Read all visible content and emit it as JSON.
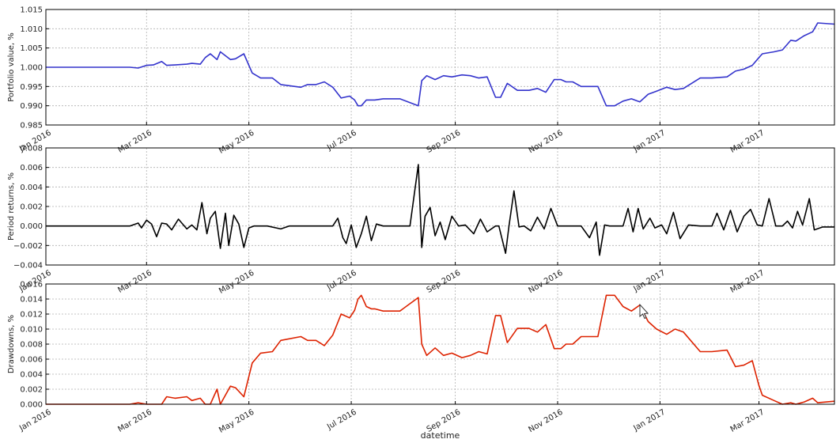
{
  "chart_data": [
    {
      "type": "line",
      "ylabel": "Portfolio value, %",
      "color": "#3333cc",
      "ylim": [
        0.985,
        1.015
      ],
      "yticks": [
        "0.985",
        "0.990",
        "0.995",
        "1.000",
        "1.005",
        "1.010",
        "1.015"
      ],
      "xticks": [
        "Jan 2016",
        "Mar 2016",
        "May 2016",
        "Jul 2016",
        "Sep 2016",
        "Nov 2016",
        "Jan 2017",
        "Mar 2017"
      ],
      "grid": true,
      "series": [
        {
          "x": [
            "2016-01-01",
            "2016-02-20",
            "2016-02-25",
            "2016-03-01",
            "2016-03-05",
            "2016-03-10",
            "2016-03-13",
            "2016-03-18",
            "2016-03-25",
            "2016-03-28",
            "2016-04-02",
            "2016-04-05",
            "2016-04-08",
            "2016-04-12",
            "2016-04-14",
            "2016-04-20",
            "2016-04-23",
            "2016-04-28",
            "2016-05-03",
            "2016-05-08",
            "2016-05-15",
            "2016-05-20",
            "2016-06-01",
            "2016-06-05",
            "2016-06-10",
            "2016-06-15",
            "2016-06-20",
            "2016-06-25",
            "2016-06-30",
            "2016-07-03",
            "2016-07-05",
            "2016-07-07",
            "2016-07-10",
            "2016-07-13",
            "2016-07-15",
            "2016-07-20",
            "2016-07-30",
            "2016-08-10",
            "2016-08-12",
            "2016-08-15",
            "2016-08-20",
            "2016-08-25",
            "2016-08-30",
            "2016-09-05",
            "2016-09-10",
            "2016-09-15",
            "2016-09-20",
            "2016-09-25",
            "2016-09-28",
            "2016-10-02",
            "2016-10-08",
            "2016-10-15",
            "2016-10-20",
            "2016-10-25",
            "2016-10-30",
            "2016-11-03",
            "2016-11-06",
            "2016-11-10",
            "2016-11-15",
            "2016-11-20",
            "2016-11-25",
            "2016-11-30",
            "2016-12-05",
            "2016-12-10",
            "2016-12-15",
            "2016-12-20",
            "2016-12-25",
            "2016-12-30",
            "2017-01-05",
            "2017-01-10",
            "2017-01-15",
            "2017-01-25",
            "2017-02-01",
            "2017-02-10",
            "2017-02-15",
            "2017-02-20",
            "2017-02-25",
            "2017-03-01",
            "2017-03-03",
            "2017-03-10",
            "2017-03-15",
            "2017-03-20",
            "2017-03-23",
            "2017-03-28",
            "2017-04-02",
            "2017-04-05",
            "2017-04-15"
          ],
          "y": [
            1.0,
            1.0,
            0.9998,
            1.0005,
            1.0006,
            1.0015,
            1.0005,
            1.0006,
            1.0008,
            1.001,
            1.0008,
            1.0025,
            1.0035,
            1.002,
            1.004,
            1.002,
            1.0022,
            1.0035,
            0.9985,
            0.9972,
            0.9972,
            0.9955,
            0.9948,
            0.9955,
            0.9955,
            0.9962,
            0.9948,
            0.992,
            0.9925,
            0.9915,
            0.99,
            0.99,
            0.9915,
            0.9915,
            0.9915,
            0.9918,
            0.9918,
            0.99,
            0.9965,
            0.9978,
            0.9968,
            0.9978,
            0.9975,
            0.998,
            0.9978,
            0.9972,
            0.9975,
            0.9922,
            0.9922,
            0.9958,
            0.994,
            0.994,
            0.9945,
            0.9935,
            0.9968,
            0.9968,
            0.9962,
            0.9962,
            0.995,
            0.995,
            0.995,
            0.99,
            0.99,
            0.9912,
            0.9918,
            0.991,
            0.993,
            0.9938,
            0.9948,
            0.9942,
            0.9945,
            0.9972,
            0.9972,
            0.9975,
            0.999,
            0.9995,
            1.0005,
            1.0025,
            1.0035,
            1.004,
            1.0045,
            1.007,
            1.0068,
            1.0082,
            1.0092,
            1.0115,
            1.0112
          ]
        }
      ]
    },
    {
      "type": "line",
      "ylabel": "Period returns, %",
      "color": "#000000",
      "ylim": [
        -0.004,
        0.008
      ],
      "yticks": [
        "−0.004",
        "−0.002",
        "0.000",
        "0.002",
        "0.004",
        "0.006",
        "0.008"
      ],
      "xticks": [
        "Jan 2016",
        "Mar 2016",
        "May 2016",
        "Jul 2016",
        "Sep 2016",
        "Nov 2016",
        "Jan 2017",
        "Mar 2017"
      ],
      "grid": true,
      "series": [
        {
          "x": [
            "2016-01-01",
            "2016-02-20",
            "2016-02-25",
            "2016-02-27",
            "2016-03-01",
            "2016-03-04",
            "2016-03-07",
            "2016-03-10",
            "2016-03-13",
            "2016-03-16",
            "2016-03-20",
            "2016-03-25",
            "2016-03-28",
            "2016-03-31",
            "2016-04-03",
            "2016-04-06",
            "2016-04-08",
            "2016-04-11",
            "2016-04-14",
            "2016-04-17",
            "2016-04-19",
            "2016-04-22",
            "2016-04-25",
            "2016-04-28",
            "2016-05-01",
            "2016-05-04",
            "2016-05-07",
            "2016-05-12",
            "2016-05-20",
            "2016-05-25",
            "2016-06-01",
            "2016-06-10",
            "2016-06-20",
            "2016-06-23",
            "2016-06-26",
            "2016-06-28",
            "2016-07-01",
            "2016-07-04",
            "2016-07-07",
            "2016-07-10",
            "2016-07-13",
            "2016-07-16",
            "2016-07-20",
            "2016-07-25",
            "2016-08-05",
            "2016-08-10",
            "2016-08-12",
            "2016-08-14",
            "2016-08-17",
            "2016-08-20",
            "2016-08-23",
            "2016-08-26",
            "2016-08-30",
            "2016-09-03",
            "2016-09-07",
            "2016-09-12",
            "2016-09-16",
            "2016-09-20",
            "2016-09-25",
            "2016-09-27",
            "2016-10-01",
            "2016-10-03",
            "2016-10-06",
            "2016-10-09",
            "2016-10-12",
            "2016-10-16",
            "2016-10-20",
            "2016-10-24",
            "2016-10-28",
            "2016-11-01",
            "2016-11-05",
            "2016-11-10",
            "2016-11-15",
            "2016-11-20",
            "2016-11-24",
            "2016-11-26",
            "2016-11-29",
            "2016-12-02",
            "2016-12-06",
            "2016-12-10",
            "2016-12-13",
            "2016-12-16",
            "2016-12-19",
            "2016-12-22",
            "2016-12-26",
            "2016-12-29",
            "2017-01-02",
            "2017-01-05",
            "2017-01-09",
            "2017-01-13",
            "2017-01-18",
            "2017-01-25",
            "2017-02-01",
            "2017-02-04",
            "2017-02-08",
            "2017-02-12",
            "2017-02-16",
            "2017-02-20",
            "2017-02-24",
            "2017-02-28",
            "2017-03-03",
            "2017-03-07",
            "2017-03-11",
            "2017-03-15",
            "2017-03-18",
            "2017-03-21",
            "2017-03-24",
            "2017-03-27",
            "2017-03-31",
            "2017-04-03",
            "2017-04-08",
            "2017-04-15"
          ],
          "y": [
            0,
            0,
            0.0003,
            -0.0002,
            0.0006,
            0.0002,
            -0.0011,
            0.0003,
            0.0002,
            -0.0004,
            0.0007,
            -0.0003,
            0.0001,
            -0.0004,
            0.0024,
            -0.0008,
            0.0008,
            0.0015,
            -0.0023,
            0.0013,
            -0.002,
            0.0011,
            0.0002,
            -0.0022,
            -0.0002,
            0,
            0,
            0,
            -0.0003,
            0,
            0,
            0,
            0,
            0.0008,
            -0.0012,
            -0.0018,
            0.0001,
            -0.0022,
            -0.0008,
            0.001,
            -0.0015,
            0.0002,
            0,
            0,
            0,
            0.0063,
            -0.0022,
            0.001,
            0.0019,
            -0.001,
            0.0004,
            -0.0014,
            0.001,
            0,
            0.0001,
            -0.0008,
            0.0007,
            -0.0006,
            0,
            0,
            -0.0028,
            0,
            0.0036,
            -0.0001,
            0,
            -0.0005,
            0.0009,
            -0.0003,
            0.0018,
            0,
            0,
            0,
            0,
            -0.0012,
            0.0004,
            -0.003,
            0.0001,
            0,
            0,
            0,
            0.0018,
            -0.0006,
            0.0018,
            -0.0003,
            0.0008,
            -0.0002,
            0.0001,
            -0.0008,
            0.0014,
            -0.0013,
            0.0001,
            0,
            0,
            0.0013,
            -0.0004,
            0.0016,
            -0.0006,
            0.001,
            0.0017,
            0.0001,
            0,
            0.0028,
            0,
            0,
            0.0005,
            -0.0002,
            0.0015,
            0.0001,
            0.0028,
            -0.0004,
            -0.0001,
            -0.0001
          ]
        }
      ]
    },
    {
      "type": "line",
      "ylabel": "Drawdowns, %",
      "xlabel": "datetime",
      "color": "#dd2200",
      "ylim": [
        0.0,
        0.016
      ],
      "yticks": [
        "0.000",
        "0.002",
        "0.004",
        "0.006",
        "0.008",
        "0.010",
        "0.012",
        "0.014",
        "0.016"
      ],
      "xticks": [
        "Jan 2016",
        "Mar 2016",
        "May 2016",
        "Jul 2016",
        "Sep 2016",
        "Nov 2016",
        "Jan 2017",
        "Mar 2017"
      ],
      "grid": true,
      "series": [
        {
          "x": [
            "2016-01-01",
            "2016-02-20",
            "2016-02-25",
            "2016-03-01",
            "2016-03-05",
            "2016-03-10",
            "2016-03-13",
            "2016-03-18",
            "2016-03-25",
            "2016-03-28",
            "2016-04-02",
            "2016-04-05",
            "2016-04-08",
            "2016-04-12",
            "2016-04-14",
            "2016-04-20",
            "2016-04-23",
            "2016-04-28",
            "2016-05-03",
            "2016-05-08",
            "2016-05-15",
            "2016-05-20",
            "2016-06-01",
            "2016-06-05",
            "2016-06-10",
            "2016-06-15",
            "2016-06-20",
            "2016-06-25",
            "2016-06-30",
            "2016-07-03",
            "2016-07-05",
            "2016-07-07",
            "2016-07-10",
            "2016-07-13",
            "2016-07-15",
            "2016-07-20",
            "2016-07-30",
            "2016-08-10",
            "2016-08-12",
            "2016-08-15",
            "2016-08-20",
            "2016-08-25",
            "2016-08-30",
            "2016-09-05",
            "2016-09-10",
            "2016-09-15",
            "2016-09-20",
            "2016-09-25",
            "2016-09-28",
            "2016-10-02",
            "2016-10-08",
            "2016-10-15",
            "2016-10-20",
            "2016-10-25",
            "2016-10-30",
            "2016-11-03",
            "2016-11-06",
            "2016-11-10",
            "2016-11-15",
            "2016-11-20",
            "2016-11-25",
            "2016-11-30",
            "2016-12-05",
            "2016-12-10",
            "2016-12-15",
            "2016-12-20",
            "2016-12-25",
            "2016-12-30",
            "2017-01-05",
            "2017-01-10",
            "2017-01-15",
            "2017-01-25",
            "2017-02-01",
            "2017-02-10",
            "2017-02-15",
            "2017-02-20",
            "2017-02-25",
            "2017-03-01",
            "2017-03-03",
            "2017-03-10",
            "2017-03-15",
            "2017-03-20",
            "2017-03-23",
            "2017-03-28",
            "2017-04-02",
            "2017-04-05",
            "2017-04-15"
          ],
          "y": [
            0,
            0,
            0.0002,
            0,
            0,
            0,
            0.001,
            0.0008,
            0.001,
            0.0005,
            0.0008,
            0,
            0,
            0.002,
            0,
            0.0024,
            0.0022,
            0.001,
            0.0055,
            0.0068,
            0.007,
            0.0085,
            0.009,
            0.0085,
            0.0085,
            0.0078,
            0.0092,
            0.012,
            0.0115,
            0.0125,
            0.014,
            0.0145,
            0.013,
            0.0127,
            0.0127,
            0.0124,
            0.0124,
            0.0142,
            0.008,
            0.0065,
            0.0075,
            0.0065,
            0.0068,
            0.0062,
            0.0065,
            0.007,
            0.0067,
            0.0118,
            0.0118,
            0.0082,
            0.0101,
            0.0101,
            0.0096,
            0.0106,
            0.0074,
            0.0074,
            0.008,
            0.008,
            0.009,
            0.009,
            0.009,
            0.0145,
            0.0145,
            0.013,
            0.0124,
            0.0132,
            0.011,
            0.01,
            0.0093,
            0.01,
            0.0096,
            0.007,
            0.007,
            0.0072,
            0.005,
            0.0052,
            0.0058,
            0.0025,
            0.0012,
            0.0005,
            0,
            0.0002,
            0,
            0.0003,
            0.0008,
            0.0002,
            0.0004
          ]
        }
      ]
    }
  ]
}
